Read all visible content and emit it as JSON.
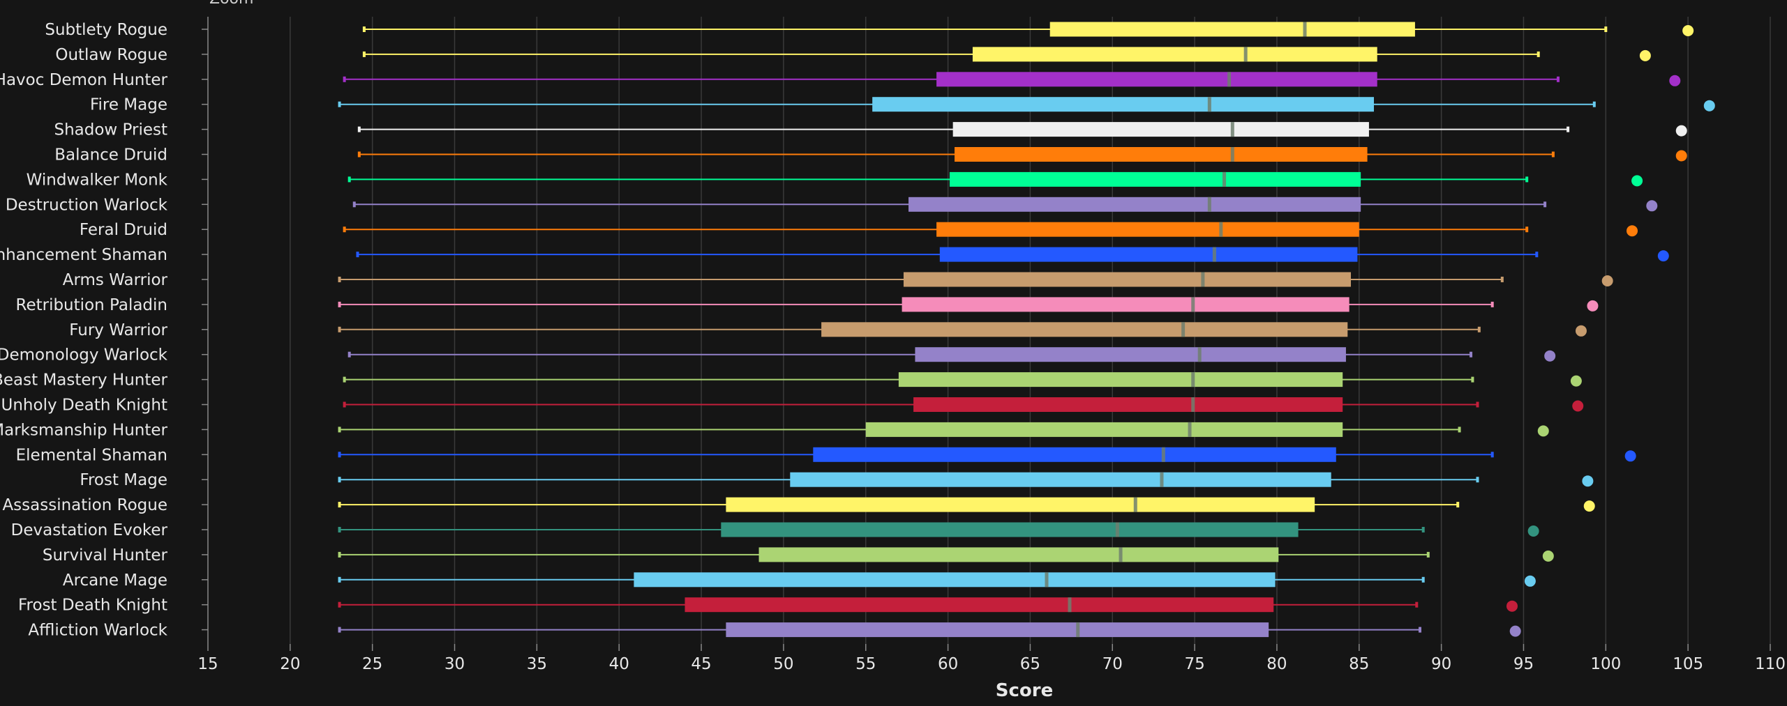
{
  "zoom_label": "Zoom",
  "chart_data": {
    "type": "boxplot",
    "xlabel": "Score",
    "xlim": [
      15,
      110
    ],
    "xticks": [
      15,
      20,
      25,
      30,
      35,
      40,
      45,
      50,
      55,
      60,
      65,
      70,
      75,
      80,
      85,
      90,
      95,
      100,
      105,
      110
    ],
    "grid": true,
    "series": [
      {
        "name": "Subtlety Rogue",
        "color": "#FFF468",
        "min": 24.5,
        "q1": 66.2,
        "median": 81.7,
        "q3": 88.4,
        "max": 100.0,
        "outlier": 105.0
      },
      {
        "name": "Outlaw Rogue",
        "color": "#FFF468",
        "min": 24.5,
        "q1": 61.5,
        "median": 78.1,
        "q3": 86.1,
        "max": 95.9,
        "outlier": 102.4
      },
      {
        "name": "Havoc Demon Hunter",
        "color": "#A330C9",
        "min": 23.3,
        "q1": 59.3,
        "median": 77.1,
        "q3": 86.1,
        "max": 97.1,
        "outlier": 104.2
      },
      {
        "name": "Fire Mage",
        "color": "#69CCF0",
        "min": 23.0,
        "q1": 55.4,
        "median": 75.9,
        "q3": 85.9,
        "max": 99.3,
        "outlier": 106.3
      },
      {
        "name": "Shadow Priest",
        "color": "#F0F0F0",
        "min": 24.2,
        "q1": 60.3,
        "median": 77.3,
        "q3": 85.6,
        "max": 97.7,
        "outlier": 104.6
      },
      {
        "name": "Balance Druid",
        "color": "#FF7D0A",
        "min": 24.2,
        "q1": 60.4,
        "median": 77.3,
        "q3": 85.5,
        "max": 96.8,
        "outlier": 104.6
      },
      {
        "name": "Windwalker Monk",
        "color": "#00FF96",
        "min": 23.6,
        "q1": 60.1,
        "median": 76.8,
        "q3": 85.1,
        "max": 95.2,
        "outlier": 101.9
      },
      {
        "name": "Destruction Warlock",
        "color": "#9482C9",
        "min": 23.9,
        "q1": 57.6,
        "median": 75.9,
        "q3": 85.1,
        "max": 96.3,
        "outlier": 102.8
      },
      {
        "name": "Feral Druid",
        "color": "#FF7D0A",
        "min": 23.3,
        "q1": 59.3,
        "median": 76.6,
        "q3": 85.0,
        "max": 95.2,
        "outlier": 101.6
      },
      {
        "name": "Enhancement Shaman",
        "color": "#2459FF",
        "min": 24.1,
        "q1": 59.5,
        "median": 76.2,
        "q3": 84.9,
        "max": 95.8,
        "outlier": 103.5
      },
      {
        "name": "Arms Warrior",
        "color": "#C79C6E",
        "min": 23.0,
        "q1": 57.3,
        "median": 75.5,
        "q3": 84.5,
        "max": 93.7,
        "outlier": 100.1
      },
      {
        "name": "Retribution Paladin",
        "color": "#F58CBA",
        "min": 23.0,
        "q1": 57.2,
        "median": 74.9,
        "q3": 84.4,
        "max": 93.1,
        "outlier": 99.2
      },
      {
        "name": "Fury Warrior",
        "color": "#C79C6E",
        "min": 23.0,
        "q1": 52.3,
        "median": 74.3,
        "q3": 84.3,
        "max": 92.3,
        "outlier": 98.5
      },
      {
        "name": "Demonology Warlock",
        "color": "#9482C9",
        "min": 23.6,
        "q1": 58.0,
        "median": 75.3,
        "q3": 84.2,
        "max": 91.8,
        "outlier": 96.6
      },
      {
        "name": "Beast Mastery Hunter",
        "color": "#ABD473",
        "min": 23.3,
        "q1": 57.0,
        "median": 74.9,
        "q3": 84.0,
        "max": 91.9,
        "outlier": 98.2
      },
      {
        "name": "Unholy Death Knight",
        "color": "#C41F3B",
        "min": 23.3,
        "q1": 57.9,
        "median": 74.9,
        "q3": 84.0,
        "max": 92.2,
        "outlier": 98.3
      },
      {
        "name": "Marksmanship Hunter",
        "color": "#ABD473",
        "min": 23.0,
        "q1": 55.0,
        "median": 74.7,
        "q3": 84.0,
        "max": 91.1,
        "outlier": 96.2
      },
      {
        "name": "Elemental Shaman",
        "color": "#2459FF",
        "min": 23.0,
        "q1": 51.8,
        "median": 73.1,
        "q3": 83.6,
        "max": 93.1,
        "outlier": 101.5
      },
      {
        "name": "Frost Mage",
        "color": "#69CCF0",
        "min": 23.0,
        "q1": 50.4,
        "median": 73.0,
        "q3": 83.3,
        "max": 92.2,
        "outlier": 98.9
      },
      {
        "name": "Assassination Rogue",
        "color": "#FFF468",
        "min": 23.0,
        "q1": 46.5,
        "median": 71.4,
        "q3": 82.3,
        "max": 91.0,
        "outlier": 99.0
      },
      {
        "name": "Devastation Evoker",
        "color": "#33937F",
        "min": 23.0,
        "q1": 46.2,
        "median": 70.3,
        "q3": 81.3,
        "max": 88.9,
        "outlier": 95.6
      },
      {
        "name": "Survival Hunter",
        "color": "#ABD473",
        "min": 23.0,
        "q1": 48.5,
        "median": 70.5,
        "q3": 80.1,
        "max": 89.2,
        "outlier": 96.5
      },
      {
        "name": "Arcane Mage",
        "color": "#69CCF0",
        "min": 23.0,
        "q1": 40.9,
        "median": 66.0,
        "q3": 79.9,
        "max": 88.9,
        "outlier": 95.4
      },
      {
        "name": "Frost Death Knight",
        "color": "#C41F3B",
        "min": 23.0,
        "q1": 44.0,
        "median": 67.4,
        "q3": 79.8,
        "max": 88.5,
        "outlier": 94.3
      },
      {
        "name": "Affliction Warlock",
        "color": "#9482C9",
        "min": 23.0,
        "q1": 46.5,
        "median": 67.9,
        "q3": 79.5,
        "max": 88.7,
        "outlier": 94.5
      }
    ]
  }
}
